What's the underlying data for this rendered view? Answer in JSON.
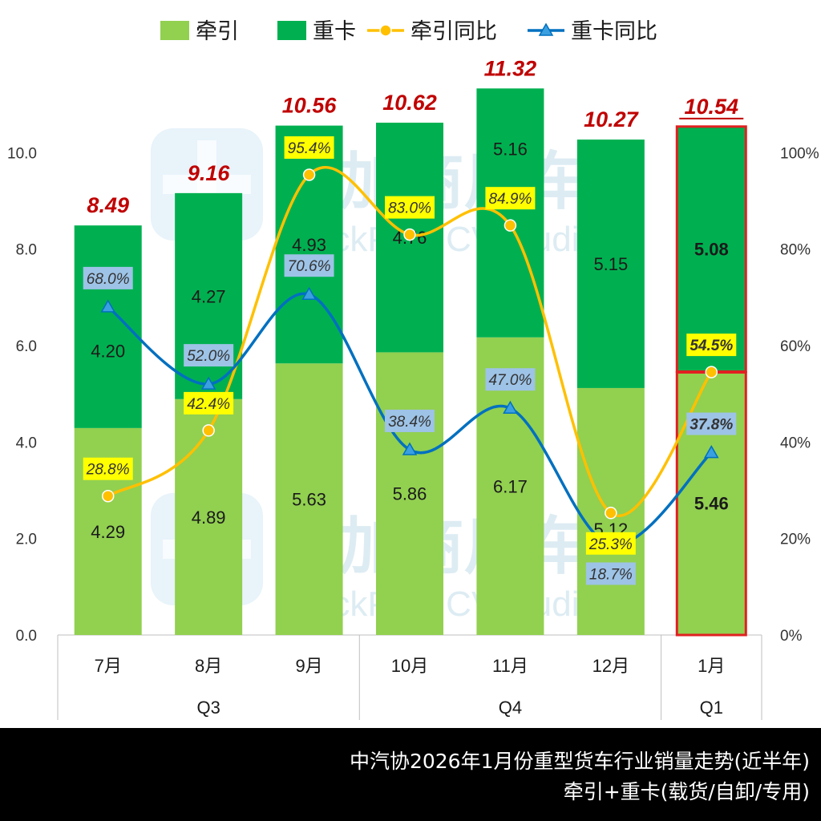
{
  "chart_data": {
    "type": "bar",
    "stacked": true,
    "categories": [
      "7月",
      "8月",
      "9月",
      "10月",
      "11月",
      "12月",
      "1月"
    ],
    "quarter_groups": [
      {
        "label": "Q3",
        "span": 3
      },
      {
        "label": "Q4",
        "span": 3
      },
      {
        "label": "Q1",
        "span": 1
      }
    ],
    "series": [
      {
        "name": "牵引",
        "kind": "bar",
        "axis": "left",
        "color": "#92D050",
        "values": [
          4.29,
          4.89,
          5.63,
          5.86,
          6.17,
          5.12,
          5.46
        ],
        "labels": [
          "4.29",
          "4.89",
          "5.63",
          "5.86",
          "6.17",
          "5.12",
          "5.46"
        ]
      },
      {
        "name": "重卡",
        "kind": "bar",
        "axis": "left",
        "color": "#00B050",
        "values": [
          4.2,
          4.27,
          4.93,
          4.76,
          5.16,
          5.15,
          5.08
        ],
        "labels": [
          "4.20",
          "4.27",
          "4.93",
          "4.76",
          "5.16",
          "5.15",
          "5.08"
        ]
      },
      {
        "name": "牵引同比",
        "kind": "line",
        "axis": "right",
        "color": "#FFC000",
        "marker": "circle",
        "values": [
          28.8,
          42.4,
          95.4,
          83.0,
          84.9,
          25.3,
          54.5
        ],
        "labels": [
          "28.8%",
          "42.4%",
          "95.4%",
          "83.0%",
          "84.9%",
          "25.3%",
          "54.5%"
        ]
      },
      {
        "name": "重卡同比",
        "kind": "line",
        "axis": "right",
        "color": "#0070C0",
        "marker": "triangle",
        "values": [
          68.0,
          52.0,
          70.6,
          38.4,
          47.0,
          18.7,
          37.8
        ],
        "labels": [
          "68.0%",
          "52.0%",
          "70.6%",
          "38.4%",
          "47.0%",
          "18.7%",
          "37.8%"
        ]
      }
    ],
    "totals": [
      8.49,
      9.16,
      10.56,
      10.62,
      11.32,
      10.27,
      10.54
    ],
    "total_labels": [
      "8.49",
      "9.16",
      "10.56",
      "10.62",
      "11.32",
      "10.27",
      "10.54"
    ],
    "y_left": {
      "min": 0,
      "max": 12,
      "ticks": [
        "0.0",
        "2.0",
        "4.0",
        "6.0",
        "8.0",
        "10.0"
      ]
    },
    "y_right": {
      "min": 0,
      "max": 120,
      "ticks": [
        "0%",
        "20%",
        "40%",
        "60%",
        "80%",
        "100%"
      ]
    },
    "legend_position": "top",
    "highlighted_category": "1月",
    "watermark": [
      "提加商用车",
      "TruckPlus CV studio"
    ],
    "colors": {
      "total_label": "#C00000",
      "highlight_border": "#E02020",
      "yoy_label_bg_traction": "#FFFF00",
      "yoy_label_bg_truck": "#9DC3E6"
    }
  },
  "footer": {
    "line1": "中汽协2026年1月份重型货车行业销量走势(近半年)",
    "line2": "牵引+重卡(载货/自卸/专用)"
  }
}
